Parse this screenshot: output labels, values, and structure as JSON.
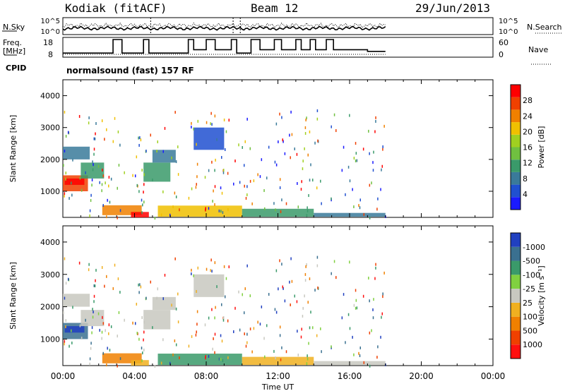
{
  "header": {
    "station": "Kodiak (fitACF)",
    "beam": "Beam 12",
    "date": "29/Jun/2013"
  },
  "side_labels": {
    "nsky": "N.Sky",
    "freq": "Freq.",
    "freq_unit": "[MHz]",
    "cpid": "CPID",
    "nsearch": "N.Search",
    "nave": "Nave"
  },
  "cpid_text": "normalsound (fast) 157 RF",
  "colors": {
    "power": [
      "#1a1aff",
      "#2050d0",
      "#3a7a9a",
      "#3a9a6a",
      "#70c040",
      "#a0d020",
      "#f0c000",
      "#f08000",
      "#f04000",
      "#ff0000"
    ],
    "velocity": [
      "#2040c0",
      "#3a7090",
      "#3a9a6a",
      "#80d040",
      "#c8c8c0",
      "#f0b020",
      "#f08000",
      "#f04000",
      "#ff1010"
    ]
  },
  "chart_data": [
    {
      "type": "line",
      "panel": "sky-noise / search-noise",
      "yticks_left": [
        "10^5",
        "10^0"
      ],
      "yticks_right": [
        "10^5",
        "10^0"
      ]
    },
    {
      "type": "line",
      "panel": "frequency / nave",
      "ylabel": "Freq. [MHz]",
      "ylim_left": [
        8,
        18
      ],
      "yticks_left": [
        "18",
        "8"
      ],
      "ylim_right": [
        0,
        60
      ],
      "yticks_right": [
        "60",
        "0"
      ],
      "freq_steps": [
        [
          0,
          10
        ],
        [
          2.5,
          10
        ],
        [
          2.8,
          18
        ],
        [
          3.3,
          10
        ],
        [
          4.2,
          10
        ],
        [
          4.5,
          18
        ],
        [
          4.8,
          10
        ],
        [
          6.7,
          10
        ],
        [
          7,
          18
        ],
        [
          7.3,
          12
        ],
        [
          7.8,
          12
        ],
        [
          8,
          18
        ],
        [
          8.5,
          12
        ],
        [
          9.1,
          12
        ],
        [
          9.4,
          18
        ],
        [
          9.7,
          10
        ],
        [
          10.3,
          10
        ],
        [
          10.5,
          18
        ],
        [
          11,
          12
        ],
        [
          11.5,
          12
        ],
        [
          11.8,
          18
        ],
        [
          12.2,
          12
        ],
        [
          12.7,
          12
        ],
        [
          13,
          18
        ],
        [
          13.3,
          12
        ],
        [
          13.5,
          12
        ],
        [
          13.8,
          18
        ],
        [
          14.1,
          12
        ],
        [
          14.5,
          12
        ],
        [
          14.7,
          18
        ],
        [
          15.1,
          12
        ],
        [
          16.5,
          12
        ],
        [
          17,
          11
        ],
        [
          18,
          11
        ]
      ]
    },
    {
      "type": "heatmap",
      "panel": "power",
      "xlabel": "",
      "ylabel": "Slant Range [km]",
      "ylim": [
        180,
        4500
      ],
      "yticks": [
        1000,
        2000,
        3000,
        4000
      ],
      "xlim": [
        0,
        24
      ],
      "colorbar_label": "Power [dB]",
      "colorbar_ticks": [
        "4",
        "8",
        "12",
        "16",
        "20",
        "24",
        "28"
      ],
      "regions": [
        {
          "x": [
            0,
            1.4
          ],
          "y": [
            1000,
            1500
          ],
          "level": 8
        },
        {
          "x": [
            0.1,
            1.2
          ],
          "y": [
            1200,
            1400
          ],
          "level": 9
        },
        {
          "x": [
            1.0,
            2.3
          ],
          "y": [
            1400,
            1900
          ],
          "level": 3
        },
        {
          "x": [
            0,
            1.5
          ],
          "y": [
            2000,
            2400
          ],
          "level": 2
        },
        {
          "x": [
            2.2,
            4.4
          ],
          "y": [
            250,
            560
          ],
          "level": 7
        },
        {
          "x": [
            3.8,
            4.8
          ],
          "y": [
            180,
            350
          ],
          "level": 9
        },
        {
          "x": [
            4.5,
            6.0
          ],
          "y": [
            1300,
            1900
          ],
          "level": 3
        },
        {
          "x": [
            5.0,
            6.3
          ],
          "y": [
            1900,
            2300
          ],
          "level": 2
        },
        {
          "x": [
            5.3,
            10.0
          ],
          "y": [
            200,
            550
          ],
          "level": 6
        },
        {
          "x": [
            7.3,
            9.0
          ],
          "y": [
            2300,
            3000
          ],
          "level": 1
        },
        {
          "x": [
            10,
            14
          ],
          "y": [
            200,
            450
          ],
          "level": 3
        },
        {
          "x": [
            14,
            18
          ],
          "y": [
            200,
            320
          ],
          "level": 2
        }
      ]
    },
    {
      "type": "heatmap",
      "panel": "velocity",
      "xlabel": "Time UT",
      "ylabel": "Slant Range [km]",
      "ylim": [
        180,
        4500
      ],
      "yticks": [
        1000,
        2000,
        3000,
        4000
      ],
      "xlim": [
        0,
        24
      ],
      "xticks": [
        "00:00",
        "04:00",
        "08:00",
        "12:00",
        "16:00",
        "20:00",
        "00:00"
      ],
      "colorbar_label": "Velocity [m s⁻¹]",
      "colorbar_ticks": [
        "1000",
        "500",
        "100",
        "25",
        "-25",
        "-100",
        "-500",
        "-1000"
      ],
      "regions": [
        {
          "x": [
            0,
            1.4
          ],
          "y": [
            1000,
            1500
          ],
          "level": 1
        },
        {
          "x": [
            0.1,
            1.2
          ],
          "y": [
            1200,
            1400
          ],
          "level": 0
        },
        {
          "x": [
            1.0,
            2.3
          ],
          "y": [
            1400,
            1900
          ],
          "level": 4
        },
        {
          "x": [
            0,
            1.5
          ],
          "y": [
            2000,
            2400
          ],
          "level": 4
        },
        {
          "x": [
            2.2,
            4.4
          ],
          "y": [
            250,
            560
          ],
          "level": 6
        },
        {
          "x": [
            3.8,
            4.8
          ],
          "y": [
            180,
            350
          ],
          "level": 5
        },
        {
          "x": [
            4.5,
            6.0
          ],
          "y": [
            1300,
            1900
          ],
          "level": 4
        },
        {
          "x": [
            5.0,
            6.3
          ],
          "y": [
            1900,
            2300
          ],
          "level": 4
        },
        {
          "x": [
            5.3,
            10.0
          ],
          "y": [
            200,
            550
          ],
          "level": 2
        },
        {
          "x": [
            7.3,
            9.0
          ],
          "y": [
            2300,
            3000
          ],
          "level": 4
        },
        {
          "x": [
            10,
            14
          ],
          "y": [
            200,
            450
          ],
          "level": 5
        },
        {
          "x": [
            14,
            18
          ],
          "y": [
            200,
            320
          ],
          "level": 4
        }
      ]
    }
  ]
}
